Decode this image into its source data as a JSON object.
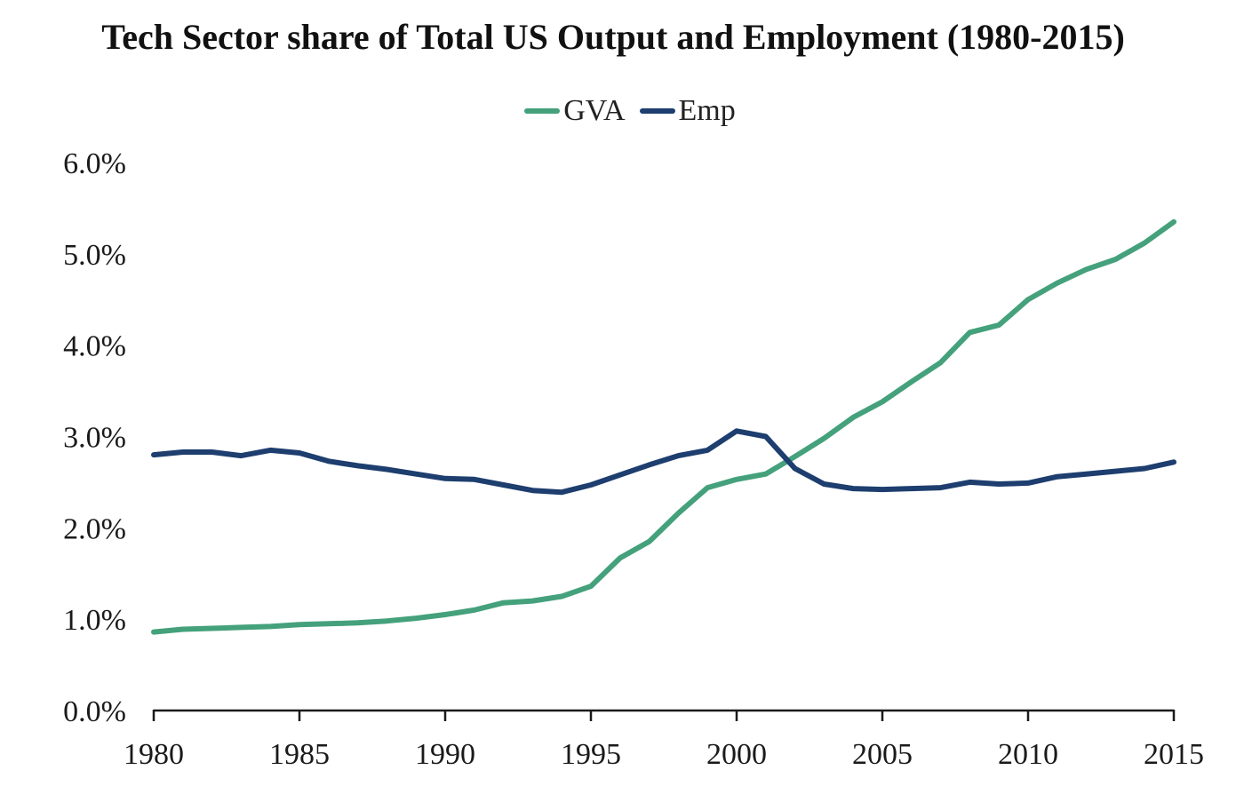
{
  "chart_data": {
    "type": "line",
    "title": "Tech Sector share of Total US Output and Employment (1980-2015)",
    "xlabel": "",
    "ylabel": "",
    "x": [
      1980,
      1981,
      1982,
      1983,
      1984,
      1985,
      1986,
      1987,
      1988,
      1989,
      1990,
      1991,
      1992,
      1993,
      1994,
      1995,
      1996,
      1997,
      1998,
      1999,
      2000,
      2001,
      2002,
      2003,
      2004,
      2005,
      2006,
      2007,
      2008,
      2009,
      2010,
      2011,
      2012,
      2013,
      2014,
      2015
    ],
    "x_ticks": [
      "1980",
      "1985",
      "1990",
      "1995",
      "2000",
      "2005",
      "2010",
      "2015"
    ],
    "x_tick_values": [
      1980,
      1985,
      1990,
      1995,
      2000,
      2005,
      2010,
      2015
    ],
    "xlim": [
      1980,
      2015
    ],
    "ylim": [
      0,
      0.06
    ],
    "y_ticks": [
      "0.0%",
      "1.0%",
      "2.0%",
      "3.0%",
      "4.0%",
      "5.0%",
      "6.0%"
    ],
    "y_tick_values": [
      0,
      0.01,
      0.02,
      0.03,
      0.04,
      0.05,
      0.06
    ],
    "grid": false,
    "legend_position": "top-center",
    "series": [
      {
        "name": "GVA",
        "color": "#44a17c",
        "values": [
          0.0086,
          0.0089,
          0.009,
          0.0091,
          0.0092,
          0.0094,
          0.0095,
          0.0096,
          0.0098,
          0.0101,
          0.0105,
          0.011,
          0.0118,
          0.012,
          0.0125,
          0.0136,
          0.0167,
          0.0185,
          0.0216,
          0.0244,
          0.0253,
          0.0259,
          0.0278,
          0.0298,
          0.0321,
          0.0338,
          0.036,
          0.0381,
          0.0414,
          0.0422,
          0.045,
          0.0468,
          0.0483,
          0.0494,
          0.0512,
          0.0535
        ]
      },
      {
        "name": "Emp",
        "color": "#1d3e6e",
        "values": [
          0.028,
          0.0283,
          0.0283,
          0.0279,
          0.0285,
          0.0282,
          0.0273,
          0.0268,
          0.0264,
          0.0259,
          0.0254,
          0.0253,
          0.0247,
          0.0241,
          0.0239,
          0.0247,
          0.0258,
          0.0269,
          0.0279,
          0.0285,
          0.0306,
          0.03,
          0.0265,
          0.0248,
          0.0243,
          0.0242,
          0.0243,
          0.0244,
          0.025,
          0.0248,
          0.0249,
          0.0256,
          0.0259,
          0.0262,
          0.0265,
          0.0272
        ]
      }
    ]
  }
}
